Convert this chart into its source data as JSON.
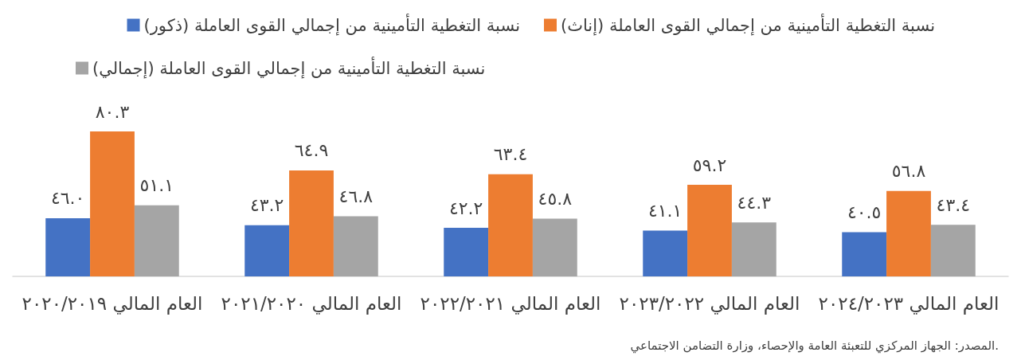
{
  "chart_data": {
    "type": "bar",
    "categories": [
      "العام المالي ٢٠٢٠/٢٠١٩",
      "العام المالي ٢٠٢١/٢٠٢٠",
      "العام المالي ٢٠٢٢/٢٠٢١",
      "العام المالي ٢٠٢٣/٢٠٢٢",
      "العام المالي ٢٠٢٤/٢٠٢٣"
    ],
    "series": [
      {
        "name": "نسبة التغطية التأمينية من إجمالي القوى العاملة (ذكور)",
        "color": "#4472c4",
        "values": [
          46.0,
          43.2,
          42.2,
          41.1,
          40.5
        ],
        "value_labels": [
          "٤٦.٠",
          "٤٣.٢",
          "٤٢.٢",
          "٤١.١",
          "٤٠.٥"
        ]
      },
      {
        "name": "نسبة التغطية التأمينية من إجمالي القوى العاملة (إناث)",
        "color": "#ed7d31",
        "values": [
          80.3,
          64.9,
          63.4,
          59.2,
          56.8
        ],
        "value_labels": [
          "٨٠.٣",
          "٦٤.٩",
          "٦٣.٤",
          "٥٩.٢",
          "٥٦.٨"
        ]
      },
      {
        "name": "نسبة التغطية التأمينية من إجمالي القوى العاملة (إجمالي)",
        "color": "#a5a5a5",
        "values": [
          51.1,
          46.8,
          45.8,
          44.3,
          43.4
        ],
        "value_labels": [
          "٥١.١",
          "٤٦.٨",
          "٤٥.٨",
          "٤٤.٣",
          "٤٣.٤"
        ]
      }
    ],
    "ylim": [
      23,
      80.3
    ],
    "tick_labels": "x",
    "legend": "top right",
    "annotations": [
      "المصدر: الجهاز المركزي للتعبئة العامة والإحصاء، وزارة التضامن الاجتماعي."
    ]
  }
}
